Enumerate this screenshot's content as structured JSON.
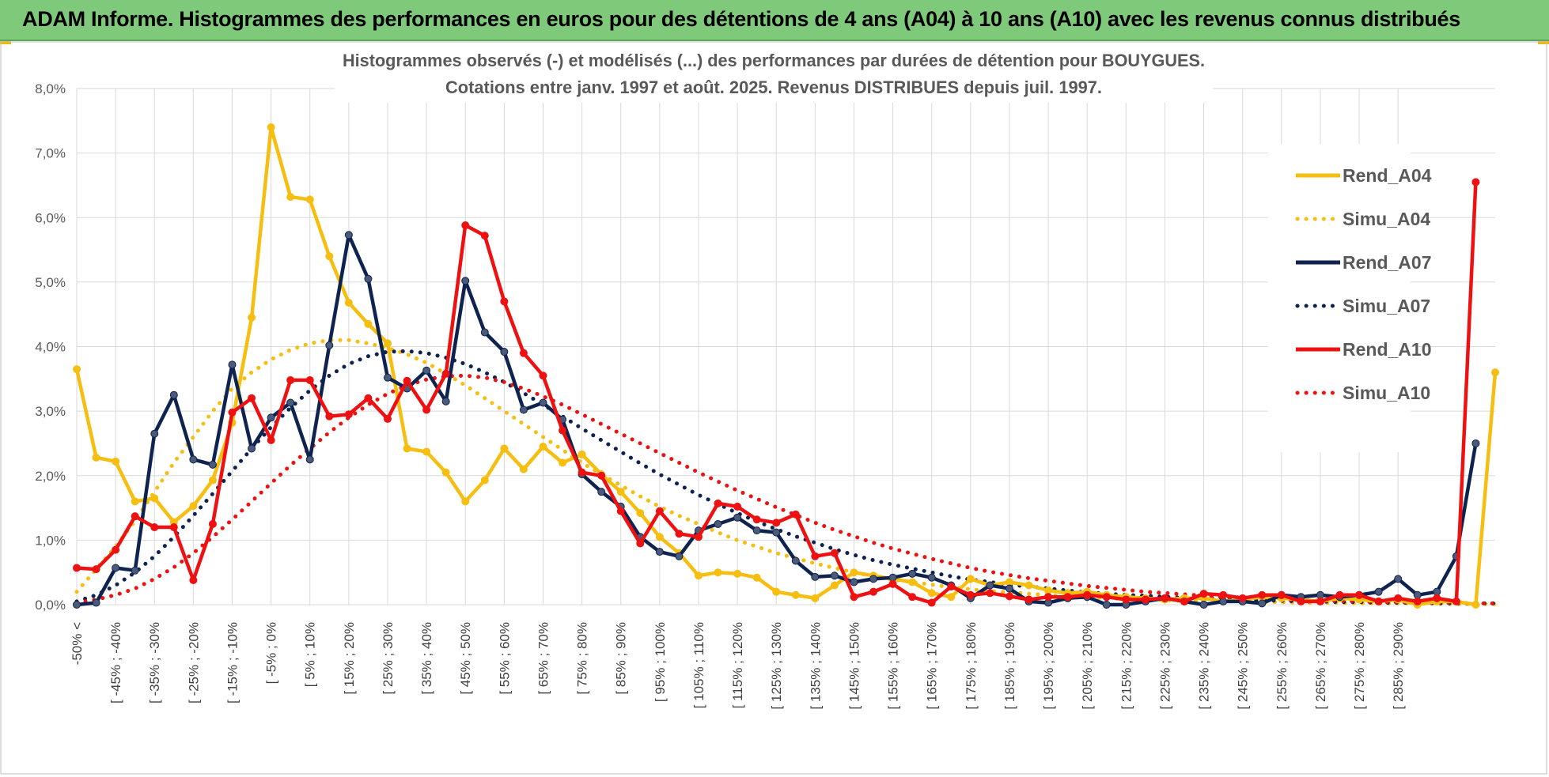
{
  "banner": {
    "title": "ADAM Informe. Histogrammes des performances en euros pour des détentions de 4 ans (A04) à 10 ans (A10) avec les revenus connus distribués"
  },
  "colors": {
    "banner_bg": "#7fc97a",
    "A04": "#f5be10",
    "A07": "#0f2350",
    "A10": "#ee1111",
    "grid": "#d9d9d9"
  },
  "chart_data": {
    "type": "line",
    "title": "Histogrammes observés (-) et modélisés (...) des performances par durées de détention pour BOUYGUES.",
    "subtitle": "Cotations entre janv. 1997 et août. 2025. Revenus DISTRIBUES depuis juil. 1997.",
    "ylim": [
      0,
      8
    ],
    "y_ticks": [
      "0,0%",
      "1,0%",
      "2,0%",
      "3,0%",
      "4,0%",
      "5,0%",
      "6,0%",
      "7,0%",
      "8,0%"
    ],
    "x_tick_labels": [
      "-50% <",
      "[ -45% ; -40%",
      "[ -35% ; -30%",
      "[ -25% ; -20%",
      "[ -15% ; -10%",
      "[ -5% ; 0%",
      "[ 5% ; 10%",
      "[ 15% ; 20%",
      "[ 25% ; 30%",
      "[ 35% ; 40%",
      "[ 45% ; 50%",
      "[ 55% ; 60%",
      "[ 65% ; 70%",
      "[ 75% ; 80%",
      "[ 85% ; 90%",
      "[ 95% ; 100%",
      "[ 105% ; 110%",
      "[ 115% ; 120%",
      "[ 125% ; 130%",
      "[ 135% ; 140%",
      "[ 145% ; 150%",
      "[ 155% ; 160%",
      "[ 165% ; 170%",
      "[ 175% ; 180%",
      "[ 185% ; 190%",
      "[ 195% ; 200%",
      "[ 205% ; 210%",
      "[ 215% ; 220%",
      "[ 225% ; 230%",
      "[ 235% ; 240%",
      "[ 245% ; 250%",
      "[ 255% ; 260%",
      "[ 265% ; 270%",
      "[ 275% ; 280%",
      "[ 285% ; 290%"
    ],
    "legend_position": "right",
    "grid": true,
    "series": [
      {
        "name": "Rend_A04",
        "style": "solid",
        "color": "#f5be10",
        "values": [
          3.65,
          2.28,
          2.22,
          1.6,
          1.65,
          1.28,
          1.53,
          1.93,
          2.82,
          4.45,
          7.4,
          6.32,
          6.28,
          5.4,
          4.68,
          4.35,
          4.05,
          2.42,
          2.37,
          2.05,
          1.6,
          1.93,
          2.42,
          2.1,
          2.45,
          2.2,
          2.33,
          2.02,
          1.75,
          1.42,
          1.05,
          0.8,
          0.45,
          0.5,
          0.48,
          0.42,
          0.2,
          0.15,
          0.1,
          0.3,
          0.5,
          0.45,
          0.4,
          0.35,
          0.18,
          0.12,
          0.4,
          0.3,
          0.35,
          0.3,
          0.22,
          0.18,
          0.2,
          0.15,
          0.12,
          0.1,
          0.08,
          0.1,
          0.1,
          0.05,
          0.08,
          0.12,
          0.1,
          0.08,
          0.05,
          0.1,
          0.08,
          0.05,
          0.08,
          0.0,
          0.05,
          0.05,
          0.0,
          3.6
        ]
      },
      {
        "name": "Simu_A04",
        "style": "dotted",
        "color": "#f5be10",
        "values": [
          0.2,
          0.55,
          0.9,
          1.3,
          1.75,
          2.2,
          2.6,
          3.0,
          3.35,
          3.6,
          3.8,
          3.95,
          4.05,
          4.1,
          4.1,
          4.05,
          3.98,
          3.88,
          3.75,
          3.58,
          3.4,
          3.2,
          3.0,
          2.8,
          2.6,
          2.4,
          2.2,
          2.02,
          1.85,
          1.68,
          1.52,
          1.38,
          1.25,
          1.12,
          1.0,
          0.9,
          0.8,
          0.72,
          0.64,
          0.57,
          0.5,
          0.44,
          0.39,
          0.35,
          0.31,
          0.27,
          0.24,
          0.21,
          0.19,
          0.17,
          0.15,
          0.13,
          0.12,
          0.1,
          0.09,
          0.08,
          0.07,
          0.06,
          0.06,
          0.05,
          0.05,
          0.04,
          0.04,
          0.03,
          0.03,
          0.03,
          0.02,
          0.02,
          0.02,
          0.02,
          0.02,
          0.01,
          0.01,
          0.01
        ]
      },
      {
        "name": "Rend_A07",
        "style": "solid",
        "color": "#0f2350",
        "values": [
          0.0,
          0.03,
          0.57,
          0.53,
          2.65,
          3.25,
          2.25,
          2.17,
          3.72,
          2.42,
          2.9,
          3.13,
          2.25,
          4.02,
          5.73,
          5.05,
          3.52,
          3.35,
          3.63,
          3.15,
          5.02,
          4.22,
          3.92,
          3.02,
          3.13,
          2.87,
          2.02,
          1.75,
          1.52,
          1.05,
          0.82,
          0.75,
          1.15,
          1.25,
          1.35,
          1.15,
          1.12,
          0.68,
          0.43,
          0.45,
          0.35,
          0.4,
          0.42,
          0.48,
          0.42,
          0.3,
          0.1,
          0.3,
          0.25,
          0.05,
          0.03,
          0.1,
          0.12,
          0.0,
          0.0,
          0.05,
          0.1,
          0.05,
          0.0,
          0.05,
          0.05,
          0.02,
          0.15,
          0.12,
          0.15,
          0.12,
          0.15,
          0.2,
          0.4,
          0.15,
          0.2,
          0.75,
          2.5
        ]
      },
      {
        "name": "Simu_A07",
        "style": "dotted",
        "color": "#0f2350",
        "values": [
          0.05,
          0.15,
          0.3,
          0.5,
          0.75,
          1.05,
          1.38,
          1.72,
          2.07,
          2.42,
          2.75,
          3.05,
          3.32,
          3.55,
          3.73,
          3.85,
          3.92,
          3.93,
          3.9,
          3.83,
          3.73,
          3.6,
          3.45,
          3.28,
          3.1,
          2.92,
          2.73,
          2.55,
          2.37,
          2.19,
          2.02,
          1.86,
          1.7,
          1.56,
          1.42,
          1.29,
          1.17,
          1.06,
          0.96,
          0.86,
          0.77,
          0.69,
          0.62,
          0.56,
          0.5,
          0.44,
          0.39,
          0.35,
          0.31,
          0.28,
          0.25,
          0.22,
          0.19,
          0.17,
          0.15,
          0.14,
          0.12,
          0.11,
          0.1,
          0.09,
          0.08,
          0.07,
          0.06,
          0.05,
          0.05,
          0.04,
          0.04,
          0.03,
          0.03,
          0.03,
          0.02,
          0.02,
          0.02,
          0.02
        ]
      },
      {
        "name": "Rend_A10",
        "style": "solid",
        "color": "#ee1111",
        "values": [
          0.57,
          0.55,
          0.85,
          1.37,
          1.2,
          1.2,
          0.38,
          1.25,
          2.98,
          3.2,
          2.55,
          3.48,
          3.48,
          2.92,
          2.95,
          3.2,
          2.88,
          3.47,
          3.02,
          3.58,
          5.88,
          5.72,
          4.7,
          3.9,
          3.55,
          2.7,
          2.05,
          2.0,
          1.45,
          0.95,
          1.45,
          1.1,
          1.05,
          1.57,
          1.52,
          1.32,
          1.27,
          1.4,
          0.75,
          0.8,
          0.12,
          0.2,
          0.32,
          0.12,
          0.03,
          0.28,
          0.15,
          0.18,
          0.13,
          0.08,
          0.12,
          0.12,
          0.15,
          0.12,
          0.08,
          0.08,
          0.1,
          0.05,
          0.17,
          0.15,
          0.1,
          0.15,
          0.15,
          0.05,
          0.05,
          0.15,
          0.15,
          0.05,
          0.1,
          0.05,
          0.1,
          0.05,
          6.55
        ]
      },
      {
        "name": "Simu_A10",
        "style": "dotted",
        "color": "#ee1111",
        "values": [
          0.03,
          0.08,
          0.15,
          0.25,
          0.4,
          0.58,
          0.8,
          1.05,
          1.32,
          1.6,
          1.88,
          2.16,
          2.42,
          2.67,
          2.9,
          3.1,
          3.27,
          3.4,
          3.49,
          3.54,
          3.55,
          3.52,
          3.45,
          3.35,
          3.23,
          3.1,
          2.95,
          2.8,
          2.65,
          2.5,
          2.35,
          2.2,
          2.05,
          1.91,
          1.77,
          1.64,
          1.51,
          1.39,
          1.27,
          1.16,
          1.06,
          0.96,
          0.87,
          0.79,
          0.71,
          0.64,
          0.57,
          0.51,
          0.46,
          0.41,
          0.37,
          0.33,
          0.29,
          0.26,
          0.23,
          0.2,
          0.18,
          0.16,
          0.14,
          0.12,
          0.11,
          0.1,
          0.08,
          0.07,
          0.06,
          0.06,
          0.05,
          0.04,
          0.04,
          0.03,
          0.03,
          0.03,
          0.02,
          0.02
        ]
      }
    ]
  }
}
